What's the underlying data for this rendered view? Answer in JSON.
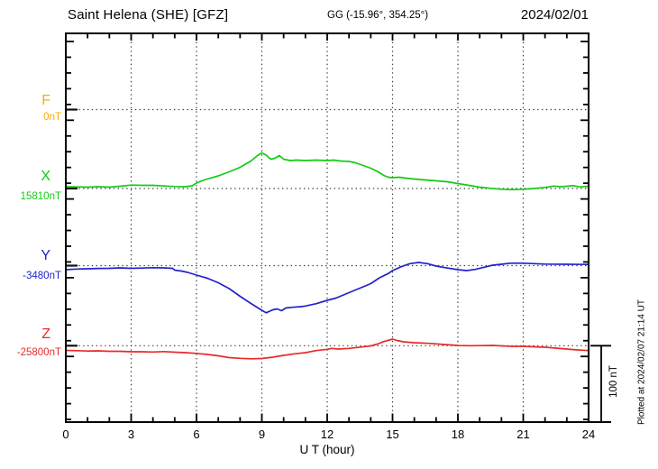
{
  "header": {
    "station_title": "Saint Helena (SHE)  [GFZ]",
    "gg_coords": "GG (-15.96°, 354.25°)",
    "date": "2024/02/01"
  },
  "plot": {
    "xaxis_label": "U T (hour)",
    "xticks": [
      "0",
      "3",
      "6",
      "9",
      "12",
      "15",
      "18",
      "21",
      "24"
    ],
    "scale_bar_label": "100 nT",
    "plotted_note": "Plotted at 2024/02/07 21:14 UT"
  },
  "components": [
    {
      "id": "F",
      "label": "F",
      "value_label": "0nT",
      "color": "#FFAA00"
    },
    {
      "id": "X",
      "label": "X",
      "value_label": "15810nT",
      "color": "#11CC11"
    },
    {
      "id": "Y",
      "label": "Y",
      "value_label": "-3480nT",
      "color": "#2222CC"
    },
    {
      "id": "Z",
      "label": "Z",
      "value_label": "-25800nT",
      "color": "#E82A2A"
    }
  ],
  "chart_data": {
    "type": "line",
    "title": "Saint Helena (SHE) [GFZ] magnetogram 2024/02/01",
    "xlabel": "U T (hour)",
    "x_range_hours": [
      0,
      24
    ],
    "x_major_tick_step_hours": 3,
    "x_minor_tick_step_hours": 1,
    "scale_bar": "100 nT",
    "grid": "dotted vertical lines every 3 h, dotted horizontal baseline per component",
    "baselines_nT": {
      "F": 0,
      "X": 15810,
      "Y": -3480,
      "Z": -25800
    },
    "series": [
      {
        "name": "X",
        "color": "#11CC11",
        "baseline_nT": 15810,
        "points_hour_deltaNT": [
          [
            0,
            2.4
          ],
          [
            0.5,
            2.1
          ],
          [
            1,
            1.8
          ],
          [
            1.5,
            2.4
          ],
          [
            2,
            1.8
          ],
          [
            2.5,
            2.9
          ],
          [
            3,
            4.5
          ],
          [
            3.5,
            4.1
          ],
          [
            4,
            4.1
          ],
          [
            4.5,
            3.3
          ],
          [
            5,
            2.6
          ],
          [
            5.5,
            2.4
          ],
          [
            5.8,
            3.5
          ],
          [
            6,
            7.1
          ],
          [
            6.3,
            10.6
          ],
          [
            6.5,
            12.4
          ],
          [
            7,
            16.5
          ],
          [
            7.5,
            21.8
          ],
          [
            8,
            27.6
          ],
          [
            8.5,
            35.9
          ],
          [
            8.8,
            42.9
          ],
          [
            9,
            46.5
          ],
          [
            9.2,
            43.5
          ],
          [
            9.4,
            38.2
          ],
          [
            9.6,
            39.4
          ],
          [
            9.8,
            42.9
          ],
          [
            10,
            38.2
          ],
          [
            10.3,
            36.5
          ],
          [
            10.6,
            37.1
          ],
          [
            11,
            36.5
          ],
          [
            11.5,
            37.1
          ],
          [
            12,
            36.5
          ],
          [
            12.3,
            37.1
          ],
          [
            12.6,
            35.9
          ],
          [
            13,
            35.3
          ],
          [
            13.3,
            33.5
          ],
          [
            13.6,
            30.6
          ],
          [
            14,
            26.5
          ],
          [
            14.3,
            22.4
          ],
          [
            14.6,
            17.1
          ],
          [
            14.8,
            14.7
          ],
          [
            15,
            14.1
          ],
          [
            15.3,
            14.7
          ],
          [
            15.6,
            13.5
          ],
          [
            16,
            12.4
          ],
          [
            16.5,
            11.2
          ],
          [
            17,
            10
          ],
          [
            17.5,
            8.8
          ],
          [
            18,
            6.5
          ],
          [
            18.5,
            4.1
          ],
          [
            19,
            1.8
          ],
          [
            19.5,
            0.2
          ],
          [
            20,
            -0.9
          ],
          [
            20.5,
            -1.5
          ],
          [
            21,
            -0.9
          ],
          [
            21.5,
            0
          ],
          [
            22,
            1.4
          ],
          [
            22.4,
            3.2
          ],
          [
            22.7,
            2.4
          ],
          [
            23,
            2.9
          ],
          [
            23.3,
            3.8
          ],
          [
            23.6,
            2
          ],
          [
            24,
            2.9
          ]
        ]
      },
      {
        "name": "Y",
        "color": "#2222CC",
        "baseline_nT": -3480,
        "points_hour_deltaNT": [
          [
            0,
            -5.3
          ],
          [
            0.5,
            -4.5
          ],
          [
            1,
            -4.1
          ],
          [
            1.5,
            -3.6
          ],
          [
            2,
            -3.5
          ],
          [
            2.5,
            -2.9
          ],
          [
            3,
            -3.5
          ],
          [
            3.5,
            -3.2
          ],
          [
            4,
            -2.7
          ],
          [
            4.5,
            -2.9
          ],
          [
            4.9,
            -3.5
          ],
          [
            5,
            -5.9
          ],
          [
            5.3,
            -7.1
          ],
          [
            5.6,
            -8.8
          ],
          [
            6,
            -12.4
          ],
          [
            6.5,
            -16.5
          ],
          [
            7,
            -22.4
          ],
          [
            7.5,
            -30
          ],
          [
            8,
            -40
          ],
          [
            8.5,
            -49.4
          ],
          [
            9,
            -58.2
          ],
          [
            9.2,
            -61.5
          ],
          [
            9.5,
            -57.6
          ],
          [
            9.7,
            -56.5
          ],
          [
            9.9,
            -58.8
          ],
          [
            10.1,
            -55.3
          ],
          [
            10.4,
            -54.4
          ],
          [
            10.8,
            -53.5
          ],
          [
            11,
            -52.7
          ],
          [
            11.5,
            -49.6
          ],
          [
            12,
            -45.3
          ],
          [
            12.4,
            -42.4
          ],
          [
            12.8,
            -37.6
          ],
          [
            13.2,
            -32.9
          ],
          [
            13.6,
            -28.2
          ],
          [
            14,
            -23.5
          ],
          [
            14.4,
            -15.9
          ],
          [
            14.8,
            -10.4
          ],
          [
            15,
            -6.5
          ],
          [
            15.4,
            -1.4
          ],
          [
            15.8,
            2.6
          ],
          [
            16.2,
            4.1
          ],
          [
            16.6,
            2.6
          ],
          [
            17,
            -0.6
          ],
          [
            17.4,
            -2.6
          ],
          [
            18,
            -5.3
          ],
          [
            18.4,
            -6.5
          ],
          [
            18.8,
            -4.9
          ],
          [
            19.2,
            -2.1
          ],
          [
            19.6,
            0.6
          ],
          [
            20,
            1.8
          ],
          [
            20.4,
            3.2
          ],
          [
            21,
            3.2
          ],
          [
            21.5,
            2.6
          ],
          [
            22,
            2
          ],
          [
            23,
            1.8
          ],
          [
            24,
            1.5
          ]
        ]
      },
      {
        "name": "Z",
        "color": "#E82A2A",
        "baseline_nT": -25800,
        "points_hour_deltaNT": [
          [
            0,
            -6.1
          ],
          [
            0.5,
            -6.5
          ],
          [
            1,
            -6.9
          ],
          [
            1.5,
            -6.7
          ],
          [
            2,
            -7.3
          ],
          [
            2.5,
            -7.3
          ],
          [
            3,
            -7.9
          ],
          [
            3.5,
            -7.9
          ],
          [
            4,
            -8.2
          ],
          [
            4.5,
            -7.6
          ],
          [
            5,
            -8.5
          ],
          [
            5.5,
            -9.1
          ],
          [
            6,
            -10
          ],
          [
            6.5,
            -11.4
          ],
          [
            7,
            -13.2
          ],
          [
            7.5,
            -15.5
          ],
          [
            8,
            -16.5
          ],
          [
            8.5,
            -17.1
          ],
          [
            9,
            -16.7
          ],
          [
            9.5,
            -14.9
          ],
          [
            10,
            -12.6
          ],
          [
            10.5,
            -10.6
          ],
          [
            11,
            -9.1
          ],
          [
            11.5,
            -6.4
          ],
          [
            12,
            -4.7
          ],
          [
            12.2,
            -3.5
          ],
          [
            12.5,
            -4.4
          ],
          [
            13,
            -3.5
          ],
          [
            13.6,
            -1.6
          ],
          [
            14,
            -0.2
          ],
          [
            14.3,
            2.1
          ],
          [
            14.6,
            5.4
          ],
          [
            15,
            8.6
          ],
          [
            15.2,
            6.8
          ],
          [
            15.5,
            5.1
          ],
          [
            16,
            3.9
          ],
          [
            16.7,
            3.1
          ],
          [
            17.4,
            1.5
          ],
          [
            18,
            0.4
          ],
          [
            18.5,
            0
          ],
          [
            19,
            0.1
          ],
          [
            19.6,
            0.4
          ],
          [
            20,
            -0.2
          ],
          [
            20.5,
            -0.8
          ],
          [
            21,
            -0.8
          ],
          [
            21.5,
            -1.4
          ],
          [
            22,
            -2
          ],
          [
            22.5,
            -3.2
          ],
          [
            23,
            -4.4
          ],
          [
            23.5,
            -5.5
          ],
          [
            24,
            -6.4
          ]
        ]
      }
    ]
  }
}
